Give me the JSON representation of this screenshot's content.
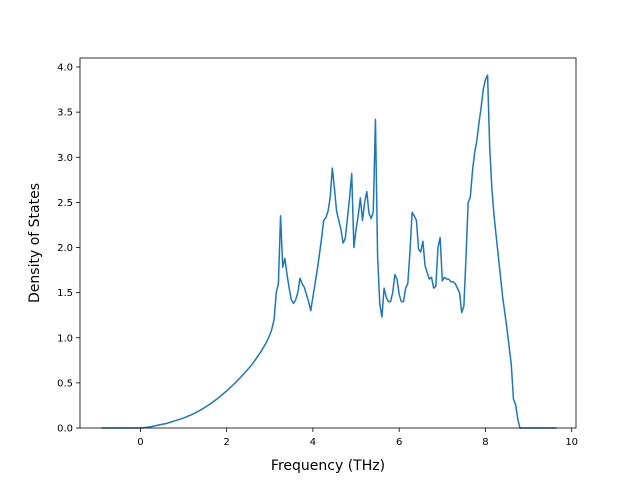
{
  "chart_data": {
    "type": "line",
    "title": "",
    "xlabel": "Frequency (THz)",
    "ylabel": "Density of States",
    "xlim": [
      -1.4,
      10.1
    ],
    "ylim": [
      0.0,
      4.1
    ],
    "xticks": [
      0,
      2,
      4,
      6,
      8,
      10
    ],
    "xtick_labels": [
      "0",
      "2",
      "4",
      "6",
      "8",
      "10"
    ],
    "yticks": [
      0.0,
      0.5,
      1.0,
      1.5,
      2.0,
      2.5,
      3.0,
      3.5,
      4.0
    ],
    "ytick_labels": [
      "0.0",
      "0.5",
      "1.0",
      "1.5",
      "2.0",
      "2.5",
      "3.0",
      "3.5",
      "4.0"
    ],
    "grid": false,
    "series": [
      {
        "color": "#1f77b4",
        "x": [
          -0.9,
          -0.5,
          0.0,
          0.2,
          0.4,
          0.6,
          0.8,
          1.0,
          1.2,
          1.4,
          1.6,
          1.8,
          2.0,
          2.2,
          2.4,
          2.6,
          2.8,
          2.9,
          3.0,
          3.05,
          3.1,
          3.15,
          3.2,
          3.25,
          3.3,
          3.35,
          3.4,
          3.45,
          3.5,
          3.55,
          3.6,
          3.65,
          3.7,
          3.75,
          3.8,
          3.85,
          3.9,
          3.95,
          4.0,
          4.05,
          4.1,
          4.15,
          4.2,
          4.25,
          4.3,
          4.35,
          4.4,
          4.45,
          4.5,
          4.55,
          4.6,
          4.65,
          4.7,
          4.75,
          4.8,
          4.85,
          4.9,
          4.95,
          5.0,
          5.05,
          5.1,
          5.15,
          5.2,
          5.25,
          5.3,
          5.35,
          5.4,
          5.45,
          5.5,
          5.55,
          5.6,
          5.65,
          5.7,
          5.75,
          5.8,
          5.85,
          5.9,
          5.95,
          6.0,
          6.05,
          6.1,
          6.15,
          6.2,
          6.25,
          6.3,
          6.35,
          6.4,
          6.45,
          6.5,
          6.55,
          6.6,
          6.65,
          6.7,
          6.75,
          6.8,
          6.85,
          6.9,
          6.95,
          7.0,
          7.05,
          7.1,
          7.15,
          7.2,
          7.25,
          7.3,
          7.35,
          7.4,
          7.45,
          7.5,
          7.55,
          7.6,
          7.65,
          7.7,
          7.75,
          7.8,
          7.85,
          7.9,
          7.95,
          8.0,
          8.05,
          8.1,
          8.15,
          8.2,
          8.3,
          8.4,
          8.5,
          8.6,
          8.65,
          8.7,
          8.75,
          8.8,
          9.0,
          9.3,
          9.65
        ],
        "y": [
          0.0,
          0.0,
          0.0,
          0.01,
          0.03,
          0.05,
          0.08,
          0.11,
          0.15,
          0.2,
          0.26,
          0.33,
          0.41,
          0.5,
          0.6,
          0.71,
          0.85,
          0.93,
          1.03,
          1.1,
          1.2,
          1.5,
          1.6,
          2.35,
          1.78,
          1.88,
          1.7,
          1.55,
          1.42,
          1.38,
          1.42,
          1.5,
          1.66,
          1.6,
          1.56,
          1.48,
          1.4,
          1.3,
          1.45,
          1.6,
          1.75,
          1.92,
          2.1,
          2.3,
          2.33,
          2.4,
          2.55,
          2.88,
          2.65,
          2.4,
          2.3,
          2.2,
          2.05,
          2.1,
          2.32,
          2.55,
          2.82,
          2.0,
          2.2,
          2.35,
          2.55,
          2.3,
          2.5,
          2.62,
          2.38,
          2.32,
          2.4,
          3.42,
          1.9,
          1.38,
          1.23,
          1.55,
          1.45,
          1.4,
          1.4,
          1.5,
          1.7,
          1.65,
          1.48,
          1.4,
          1.4,
          1.55,
          1.6,
          1.95,
          2.39,
          2.35,
          2.3,
          1.98,
          1.95,
          2.07,
          1.8,
          1.72,
          1.65,
          1.67,
          1.55,
          1.57,
          2.0,
          2.11,
          1.63,
          1.67,
          1.65,
          1.65,
          1.62,
          1.62,
          1.6,
          1.55,
          1.5,
          1.28,
          1.35,
          1.9,
          2.5,
          2.56,
          2.85,
          3.05,
          3.18,
          3.38,
          3.55,
          3.75,
          3.86,
          3.91,
          3.1,
          2.65,
          2.35,
          1.9,
          1.45,
          1.1,
          0.7,
          0.32,
          0.26,
          0.1,
          0.0,
          0.0,
          0.0,
          0.0
        ]
      }
    ]
  }
}
